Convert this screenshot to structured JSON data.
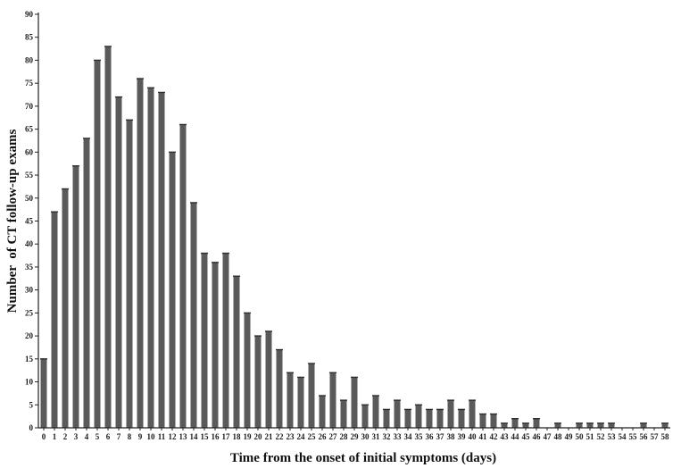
{
  "chart_data": {
    "type": "bar",
    "title": "",
    "xlabel": "Time from the onset of initial symptoms (days)",
    "ylabel": "Number  of CT follow-up exams",
    "ylim": [
      0,
      90
    ],
    "yticks": [
      0,
      5,
      10,
      15,
      20,
      25,
      30,
      35,
      40,
      45,
      50,
      55,
      60,
      65,
      70,
      75,
      80,
      85,
      90
    ],
    "grid": false,
    "bar_color": "#5a5a5a",
    "categories": [
      "0",
      "1",
      "2",
      "3",
      "4",
      "5",
      "6",
      "7",
      "8",
      "9",
      "10",
      "11",
      "12",
      "13",
      "14",
      "15",
      "16",
      "17",
      "18",
      "19",
      "20",
      "21",
      "22",
      "23",
      "24",
      "25",
      "26",
      "27",
      "28",
      "29",
      "30",
      "31",
      "32",
      "33",
      "34",
      "35",
      "36",
      "37",
      "38",
      "39",
      "40",
      "41",
      "42",
      "43",
      "44",
      "45",
      "46",
      "47",
      "48",
      "49",
      "50",
      "51",
      "52",
      "53",
      "54",
      "55",
      "56",
      "57",
      "58"
    ],
    "values": [
      15,
      47,
      52,
      57,
      63,
      80,
      83,
      72,
      67,
      76,
      74,
      73,
      60,
      66,
      49,
      38,
      36,
      38,
      33,
      25,
      20,
      21,
      17,
      12,
      11,
      14,
      7,
      12,
      6,
      11,
      5,
      7,
      4,
      6,
      4,
      5,
      4,
      4,
      6,
      4,
      6,
      3,
      3,
      1,
      2,
      1,
      2,
      0,
      1,
      0,
      1,
      1,
      1,
      1,
      0,
      0,
      1,
      0,
      1
    ]
  }
}
